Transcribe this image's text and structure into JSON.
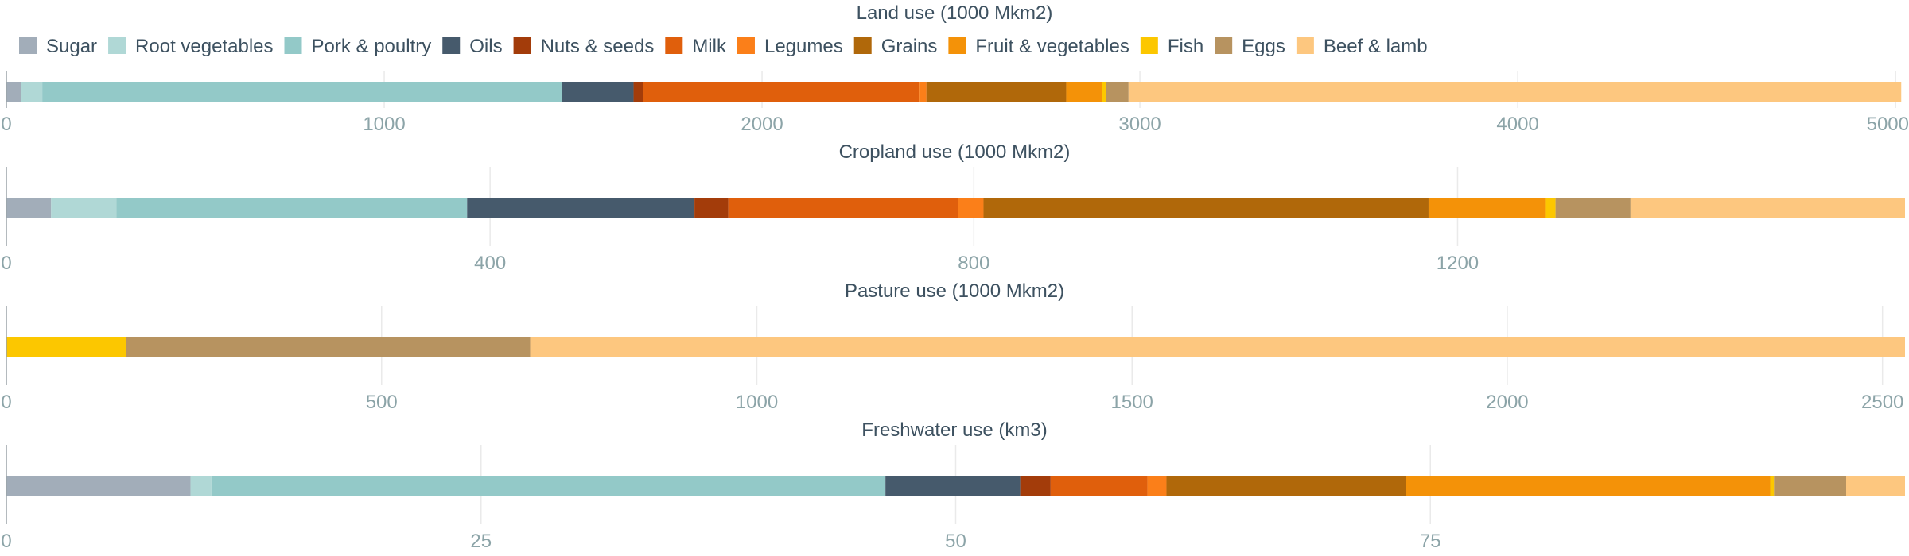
{
  "chart_data": {
    "type": "bar",
    "orientation": "horizontal",
    "stacked": true,
    "legend_position": "top-left",
    "grid": true,
    "series": [
      {
        "name": "Sugar",
        "color": "#a2adb9"
      },
      {
        "name": "Root vegetables",
        "color": "#b0d8d6"
      },
      {
        "name": "Pork & poultry",
        "color": "#93c9c8"
      },
      {
        "name": "Oils",
        "color": "#465a6c"
      },
      {
        "name": "Nuts & seeds",
        "color": "#a33c0a"
      },
      {
        "name": "Milk",
        "color": "#e05f0c"
      },
      {
        "name": "Legumes",
        "color": "#fb7f19"
      },
      {
        "name": "Grains",
        "color": "#b0680a"
      },
      {
        "name": "Fruit & vegetables",
        "color": "#f49208"
      },
      {
        "name": "Fish",
        "color": "#fcc700"
      },
      {
        "name": "Eggs",
        "color": "#b79360"
      },
      {
        "name": "Beef & lamb",
        "color": "#fdc77f"
      }
    ],
    "panels": [
      {
        "title": "Land use (1000 Mkm2)",
        "xlim": [
          0,
          5025
        ],
        "ticks": [
          0,
          1000,
          2000,
          3000,
          4000,
          5000
        ],
        "tick_labels": [
          "0",
          "1000",
          "2000",
          "3000",
          "4000",
          "5000"
        ],
        "values": [
          40,
          55,
          1375,
          190,
          25,
          730,
          20,
          370,
          95,
          10,
          60,
          2045
        ]
      },
      {
        "title": "Cropland use (1000 Mkm2)",
        "xlim": [
          0,
          1570
        ],
        "ticks": [
          0,
          400,
          800,
          1200
        ],
        "tick_labels": [
          "0",
          "400",
          "800",
          "1200"
        ],
        "values": [
          37,
          54,
          290,
          188,
          28,
          190,
          21,
          368,
          97,
          8,
          62,
          227
        ]
      },
      {
        "title": "Pasture use (1000 Mkm2)",
        "xlim": [
          0,
          2530
        ],
        "ticks": [
          0,
          500,
          1000,
          1500,
          2000,
          2500
        ],
        "tick_labels": [
          "0",
          "500",
          "1000",
          "1500",
          "2000",
          "2500"
        ],
        "values": [
          0,
          0,
          0,
          0,
          0,
          0,
          0,
          0,
          0,
          160,
          538,
          1832
        ]
      },
      {
        "title": "Freshwater use (km3)",
        "xlim": [
          0,
          100
        ],
        "ticks": [
          0,
          25,
          50,
          75
        ],
        "tick_labels": [
          "0",
          "25",
          "50",
          "75"
        ],
        "values": [
          9.7,
          1.1,
          35.5,
          7.1,
          1.6,
          5.1,
          1.0,
          12.6,
          19.2,
          0.2,
          3.8,
          3.1
        ]
      }
    ]
  }
}
